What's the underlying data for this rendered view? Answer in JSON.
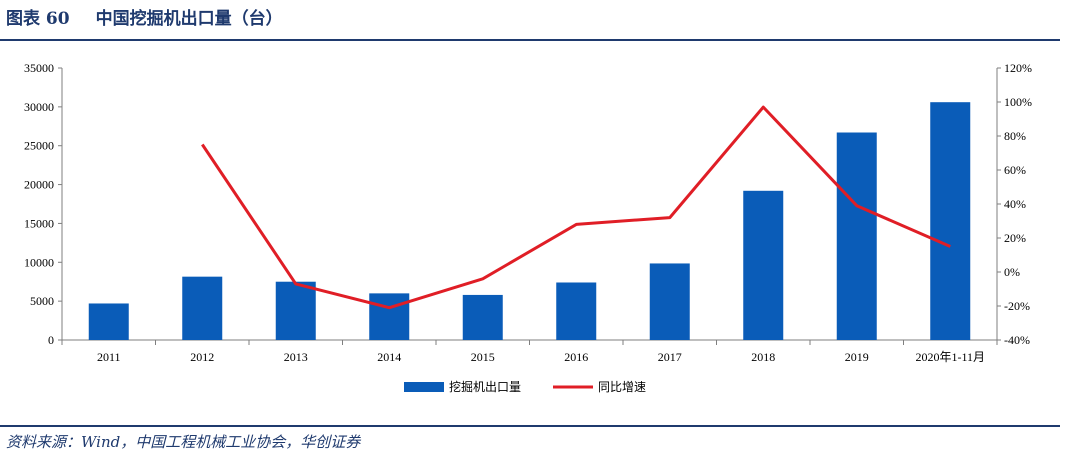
{
  "header": {
    "figure_no": "图表 60",
    "title": "中国挖掘机出口量（台）"
  },
  "source": "资料来源：Wind，中国工程机械工业协会，华创证券",
  "colors": {
    "bar": "#0a5cb8",
    "line": "#e01e26",
    "rule": "#1f3a6e"
  },
  "chart_data": {
    "type": "bar",
    "categories": [
      "2011",
      "2012",
      "2013",
      "2014",
      "2015",
      "2016",
      "2017",
      "2018",
      "2019",
      "2020年1-11月"
    ],
    "series": [
      {
        "name": "挖掘机出口量",
        "type": "bar",
        "axis": "left",
        "values": [
          4700,
          8150,
          7500,
          6000,
          5800,
          7400,
          9850,
          19200,
          26700,
          30600
        ]
      },
      {
        "name": "同比增速",
        "type": "line",
        "axis": "right",
        "values": [
          null,
          0.75,
          -0.07,
          -0.21,
          -0.04,
          0.28,
          0.32,
          0.97,
          0.39,
          0.15
        ]
      }
    ],
    "y_left": {
      "min": 0,
      "max": 35000,
      "ticks": [
        "0",
        "5000",
        "10000",
        "15000",
        "20000",
        "25000",
        "30000",
        "35000"
      ]
    },
    "y_right": {
      "min": -0.4,
      "max": 1.2,
      "ticks": [
        "-40%",
        "-20%",
        "0%",
        "20%",
        "40%",
        "60%",
        "80%",
        "100%",
        "120%"
      ]
    },
    "legend_position": "bottom"
  }
}
